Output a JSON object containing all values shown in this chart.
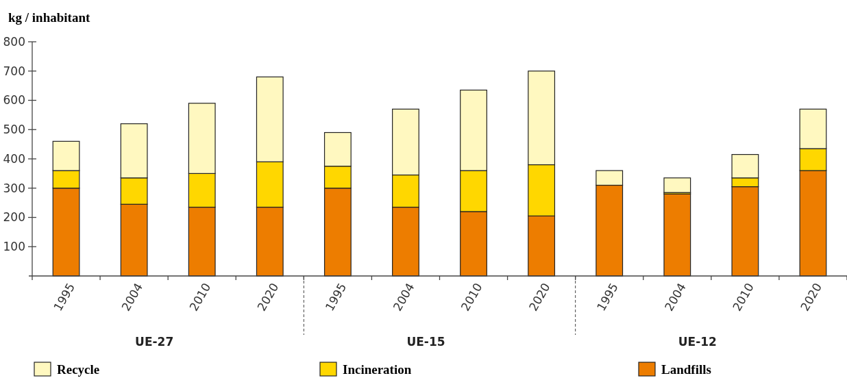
{
  "chart_data": {
    "type": "bar",
    "stacked": true,
    "ylabel": "kg / inhabitant",
    "categories": [
      "1995",
      "2004",
      "2010",
      "2020",
      "1995",
      "2004",
      "2010",
      "2020",
      "1995",
      "2004",
      "2010",
      "2020"
    ],
    "series": [
      {
        "name": "Landfills",
        "color": "#ed7d00",
        "values": [
          300,
          245,
          235,
          235,
          300,
          235,
          220,
          205,
          310,
          280,
          305,
          360
        ]
      },
      {
        "name": "Incineration",
        "color": "#ffd700",
        "values": [
          60,
          90,
          115,
          155,
          75,
          110,
          140,
          175,
          null,
          5,
          30,
          75
        ]
      },
      {
        "name": "Recycle",
        "color": "#fff8c0",
        "values": [
          100,
          185,
          240,
          290,
          115,
          225,
          275,
          320,
          50,
          50,
          80,
          135
        ]
      }
    ],
    "ylim": [
      0,
      800
    ],
    "yticks": [
      100,
      200,
      300,
      400,
      500,
      600,
      700,
      800
    ],
    "annotations": [
      "UE-27",
      "UE-15",
      "UE-12"
    ],
    "legend": "bottom",
    "grid": false
  }
}
